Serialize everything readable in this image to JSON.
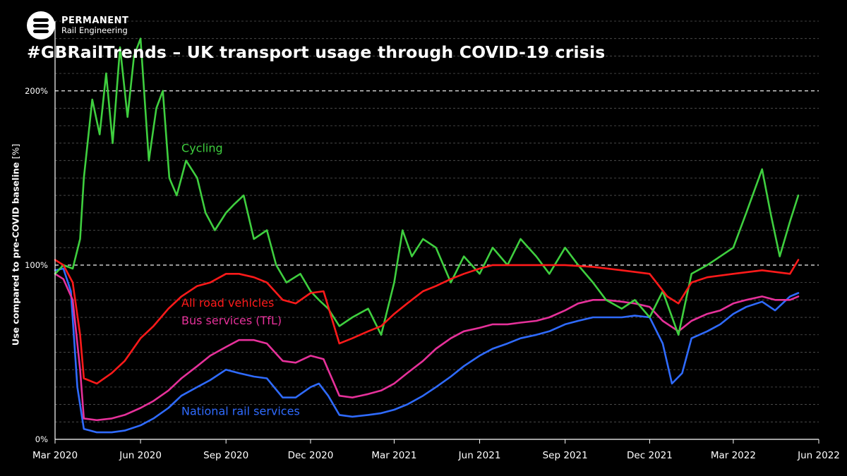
{
  "brand": {
    "name": "PERMANENT",
    "subtitle": "Rail Engineering"
  },
  "chart_data": {
    "type": "line",
    "title": "#GBRailTrends – UK transport usage through COVID-19 crisis",
    "ylabel": "Use compared to pre-COVID baseline",
    "ylabel_unit": "[%]",
    "xlabel": "",
    "x_ticks": [
      {
        "date": "2020-03-01",
        "label": "Mar 2020"
      },
      {
        "date": "2020-06-01",
        "label": "Jun 2020"
      },
      {
        "date": "2020-09-01",
        "label": "Sep 2020"
      },
      {
        "date": "2020-12-01",
        "label": "Dec 2020"
      },
      {
        "date": "2021-03-01",
        "label": "Mar 2021"
      },
      {
        "date": "2021-06-01",
        "label": "Jun 2021"
      },
      {
        "date": "2021-09-01",
        "label": "Sep 2021"
      },
      {
        "date": "2021-12-01",
        "label": "Dec 2021"
      },
      {
        "date": "2022-03-01",
        "label": "Mar 2022"
      },
      {
        "date": "2022-06-01",
        "label": "Jun 2022"
      }
    ],
    "y_ticks": [
      {
        "value": 0,
        "label": "0%"
      },
      {
        "value": 100,
        "label": "100%"
      },
      {
        "value": 200,
        "label": "200%"
      }
    ],
    "xlim": [
      "2020-03-01",
      "2022-06-01"
    ],
    "ylim": [
      0,
      240
    ],
    "grid": "horizontal dashed",
    "legend": "inline labels",
    "series": [
      {
        "name": "Cycling",
        "color": "#3fcf3f",
        "label_anchor": [
          "2020-07-15",
          165
        ],
        "points": [
          [
            "2020-03-01",
            95
          ],
          [
            "2020-03-10",
            100
          ],
          [
            "2020-03-20",
            98
          ],
          [
            "2020-03-28",
            115
          ],
          [
            "2020-04-01",
            150
          ],
          [
            "2020-04-10",
            195
          ],
          [
            "2020-04-18",
            175
          ],
          [
            "2020-04-25",
            210
          ],
          [
            "2020-05-02",
            170
          ],
          [
            "2020-05-10",
            225
          ],
          [
            "2020-05-18",
            185
          ],
          [
            "2020-05-25",
            220
          ],
          [
            "2020-06-01",
            230
          ],
          [
            "2020-06-10",
            160
          ],
          [
            "2020-06-18",
            190
          ],
          [
            "2020-06-25",
            200
          ],
          [
            "2020-07-02",
            150
          ],
          [
            "2020-07-10",
            140
          ],
          [
            "2020-07-20",
            160
          ],
          [
            "2020-08-01",
            150
          ],
          [
            "2020-08-10",
            130
          ],
          [
            "2020-08-20",
            120
          ],
          [
            "2020-09-01",
            130
          ],
          [
            "2020-09-10",
            135
          ],
          [
            "2020-09-20",
            140
          ],
          [
            "2020-10-01",
            115
          ],
          [
            "2020-10-15",
            120
          ],
          [
            "2020-10-25",
            100
          ],
          [
            "2020-11-05",
            90
          ],
          [
            "2020-11-20",
            95
          ],
          [
            "2020-12-01",
            85
          ],
          [
            "2020-12-10",
            80
          ],
          [
            "2020-12-20",
            75
          ],
          [
            "2021-01-01",
            65
          ],
          [
            "2021-01-15",
            70
          ],
          [
            "2021-02-01",
            75
          ],
          [
            "2021-02-15",
            60
          ],
          [
            "2021-03-01",
            90
          ],
          [
            "2021-03-10",
            120
          ],
          [
            "2021-03-20",
            105
          ],
          [
            "2021-04-01",
            115
          ],
          [
            "2021-04-15",
            110
          ],
          [
            "2021-05-01",
            90
          ],
          [
            "2021-05-15",
            105
          ],
          [
            "2021-06-01",
            95
          ],
          [
            "2021-06-15",
            110
          ],
          [
            "2021-07-01",
            100
          ],
          [
            "2021-07-15",
            115
          ],
          [
            "2021-08-01",
            105
          ],
          [
            "2021-08-15",
            95
          ],
          [
            "2021-09-01",
            110
          ],
          [
            "2021-09-15",
            100
          ],
          [
            "2021-10-01",
            90
          ],
          [
            "2021-10-15",
            80
          ],
          [
            "2021-11-01",
            75
          ],
          [
            "2021-11-15",
            80
          ],
          [
            "2021-12-01",
            70
          ],
          [
            "2021-12-15",
            85
          ],
          [
            "2022-01-01",
            60
          ],
          [
            "2022-01-15",
            95
          ],
          [
            "2022-02-01",
            100
          ],
          [
            "2022-02-15",
            105
          ],
          [
            "2022-03-01",
            110
          ],
          [
            "2022-03-15",
            130
          ],
          [
            "2022-04-01",
            155
          ],
          [
            "2022-04-10",
            130
          ],
          [
            "2022-04-20",
            105
          ],
          [
            "2022-05-01",
            125
          ],
          [
            "2022-05-10",
            140
          ]
        ]
      },
      {
        "name": "All road vehicles",
        "color": "#ff1a1a",
        "label_anchor": [
          "2020-07-15",
          76
        ],
        "points": [
          [
            "2020-03-01",
            103
          ],
          [
            "2020-03-10",
            100
          ],
          [
            "2020-03-20",
            90
          ],
          [
            "2020-03-28",
            60
          ],
          [
            "2020-04-01",
            35
          ],
          [
            "2020-04-15",
            32
          ],
          [
            "2020-05-01",
            38
          ],
          [
            "2020-05-15",
            45
          ],
          [
            "2020-06-01",
            58
          ],
          [
            "2020-06-15",
            65
          ],
          [
            "2020-07-01",
            75
          ],
          [
            "2020-07-15",
            82
          ],
          [
            "2020-08-01",
            88
          ],
          [
            "2020-08-15",
            90
          ],
          [
            "2020-09-01",
            95
          ],
          [
            "2020-09-15",
            95
          ],
          [
            "2020-10-01",
            93
          ],
          [
            "2020-10-15",
            90
          ],
          [
            "2020-11-01",
            80
          ],
          [
            "2020-11-15",
            78
          ],
          [
            "2020-12-01",
            84
          ],
          [
            "2020-12-15",
            85
          ],
          [
            "2021-01-01",
            55
          ],
          [
            "2021-01-15",
            58
          ],
          [
            "2021-02-01",
            62
          ],
          [
            "2021-02-15",
            65
          ],
          [
            "2021-03-01",
            72
          ],
          [
            "2021-03-15",
            78
          ],
          [
            "2021-04-01",
            85
          ],
          [
            "2021-04-15",
            88
          ],
          [
            "2021-05-01",
            92
          ],
          [
            "2021-05-15",
            95
          ],
          [
            "2021-06-01",
            98
          ],
          [
            "2021-06-15",
            100
          ],
          [
            "2021-07-01",
            100
          ],
          [
            "2021-08-01",
            100
          ],
          [
            "2021-09-01",
            100
          ],
          [
            "2021-10-01",
            99
          ],
          [
            "2021-11-01",
            97
          ],
          [
            "2021-12-01",
            95
          ],
          [
            "2021-12-20",
            82
          ],
          [
            "2022-01-01",
            78
          ],
          [
            "2022-01-15",
            90
          ],
          [
            "2022-02-01",
            93
          ],
          [
            "2022-03-01",
            95
          ],
          [
            "2022-04-01",
            97
          ],
          [
            "2022-05-01",
            95
          ],
          [
            "2022-05-10",
            103
          ]
        ]
      },
      {
        "name": "Bus services (TfL)",
        "color": "#e6319a",
        "label_anchor": [
          "2020-07-15",
          66
        ],
        "points": [
          [
            "2020-03-01",
            95
          ],
          [
            "2020-03-10",
            92
          ],
          [
            "2020-03-20",
            80
          ],
          [
            "2020-03-28",
            40
          ],
          [
            "2020-04-01",
            12
          ],
          [
            "2020-04-15",
            11
          ],
          [
            "2020-05-01",
            12
          ],
          [
            "2020-05-15",
            14
          ],
          [
            "2020-06-01",
            18
          ],
          [
            "2020-06-15",
            22
          ],
          [
            "2020-07-01",
            28
          ],
          [
            "2020-07-15",
            35
          ],
          [
            "2020-08-01",
            42
          ],
          [
            "2020-08-15",
            48
          ],
          [
            "2020-09-01",
            53
          ],
          [
            "2020-09-15",
            57
          ],
          [
            "2020-10-01",
            57
          ],
          [
            "2020-10-15",
            55
          ],
          [
            "2020-11-01",
            45
          ],
          [
            "2020-11-15",
            44
          ],
          [
            "2020-12-01",
            48
          ],
          [
            "2020-12-15",
            46
          ],
          [
            "2021-01-01",
            25
          ],
          [
            "2021-01-15",
            24
          ],
          [
            "2021-02-01",
            26
          ],
          [
            "2021-02-15",
            28
          ],
          [
            "2021-03-01",
            32
          ],
          [
            "2021-03-15",
            38
          ],
          [
            "2021-04-01",
            45
          ],
          [
            "2021-04-15",
            52
          ],
          [
            "2021-05-01",
            58
          ],
          [
            "2021-05-15",
            62
          ],
          [
            "2021-06-01",
            64
          ],
          [
            "2021-06-15",
            66
          ],
          [
            "2021-07-01",
            66
          ],
          [
            "2021-07-15",
            67
          ],
          [
            "2021-08-01",
            68
          ],
          [
            "2021-08-15",
            70
          ],
          [
            "2021-09-01",
            74
          ],
          [
            "2021-09-15",
            78
          ],
          [
            "2021-10-01",
            80
          ],
          [
            "2021-10-15",
            80
          ],
          [
            "2021-11-01",
            79
          ],
          [
            "2021-11-15",
            78
          ],
          [
            "2021-12-01",
            76
          ],
          [
            "2021-12-15",
            68
          ],
          [
            "2022-01-01",
            62
          ],
          [
            "2022-01-15",
            68
          ],
          [
            "2022-02-01",
            72
          ],
          [
            "2022-02-15",
            74
          ],
          [
            "2022-03-01",
            78
          ],
          [
            "2022-03-15",
            80
          ],
          [
            "2022-04-01",
            82
          ],
          [
            "2022-04-15",
            80
          ],
          [
            "2022-05-01",
            80
          ],
          [
            "2022-05-10",
            82
          ]
        ]
      },
      {
        "name": "National rail services",
        "color": "#2f6bff",
        "label_anchor": [
          "2020-07-15",
          14
        ],
        "points": [
          [
            "2020-03-01",
            97
          ],
          [
            "2020-03-10",
            98
          ],
          [
            "2020-03-18",
            85
          ],
          [
            "2020-03-25",
            30
          ],
          [
            "2020-04-01",
            6
          ],
          [
            "2020-04-15",
            4
          ],
          [
            "2020-05-01",
            4
          ],
          [
            "2020-05-15",
            5
          ],
          [
            "2020-06-01",
            8
          ],
          [
            "2020-06-15",
            12
          ],
          [
            "2020-07-01",
            18
          ],
          [
            "2020-07-15",
            25
          ],
          [
            "2020-08-01",
            30
          ],
          [
            "2020-08-15",
            34
          ],
          [
            "2020-09-01",
            40
          ],
          [
            "2020-09-15",
            38
          ],
          [
            "2020-10-01",
            36
          ],
          [
            "2020-10-15",
            35
          ],
          [
            "2020-11-01",
            24
          ],
          [
            "2020-11-15",
            24
          ],
          [
            "2020-12-01",
            30
          ],
          [
            "2020-12-10",
            32
          ],
          [
            "2020-12-20",
            25
          ],
          [
            "2021-01-01",
            14
          ],
          [
            "2021-01-15",
            13
          ],
          [
            "2021-02-01",
            14
          ],
          [
            "2021-02-15",
            15
          ],
          [
            "2021-03-01",
            17
          ],
          [
            "2021-03-15",
            20
          ],
          [
            "2021-04-01",
            25
          ],
          [
            "2021-04-15",
            30
          ],
          [
            "2021-05-01",
            36
          ],
          [
            "2021-05-15",
            42
          ],
          [
            "2021-06-01",
            48
          ],
          [
            "2021-06-15",
            52
          ],
          [
            "2021-07-01",
            55
          ],
          [
            "2021-07-15",
            58
          ],
          [
            "2021-08-01",
            60
          ],
          [
            "2021-08-15",
            62
          ],
          [
            "2021-09-01",
            66
          ],
          [
            "2021-09-15",
            68
          ],
          [
            "2021-10-01",
            70
          ],
          [
            "2021-10-15",
            70
          ],
          [
            "2021-11-01",
            70
          ],
          [
            "2021-11-15",
            71
          ],
          [
            "2021-12-01",
            70
          ],
          [
            "2021-12-15",
            55
          ],
          [
            "2021-12-25",
            32
          ],
          [
            "2022-01-05",
            38
          ],
          [
            "2022-01-15",
            58
          ],
          [
            "2022-02-01",
            62
          ],
          [
            "2022-02-15",
            66
          ],
          [
            "2022-03-01",
            72
          ],
          [
            "2022-03-15",
            76
          ],
          [
            "2022-04-01",
            79
          ],
          [
            "2022-04-15",
            74
          ],
          [
            "2022-05-01",
            82
          ],
          [
            "2022-05-10",
            84
          ]
        ]
      }
    ]
  }
}
